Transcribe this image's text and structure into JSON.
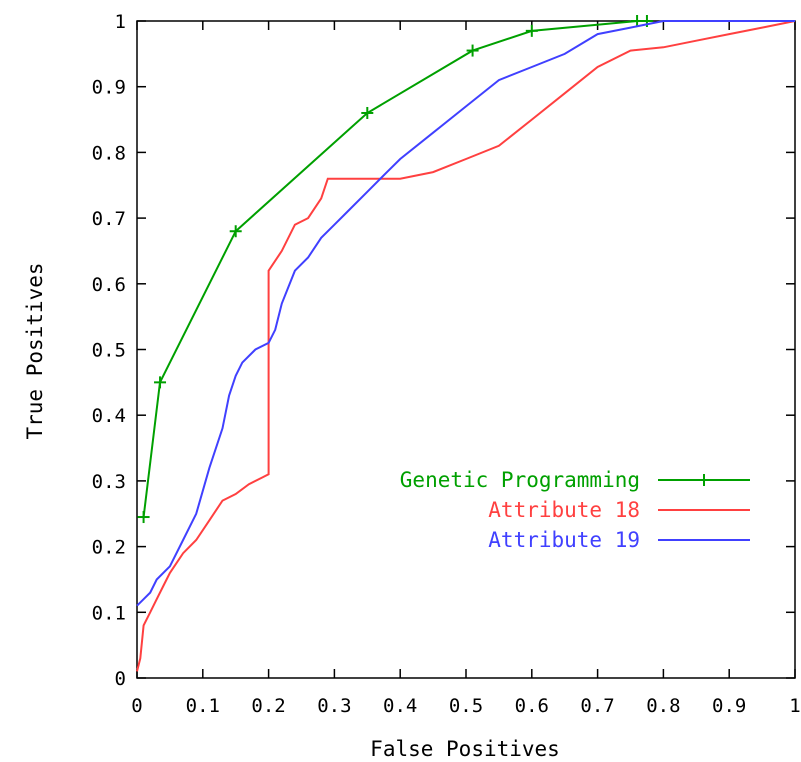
{
  "colors": {
    "background": "#ffffff",
    "axes": "#000000",
    "series_gp": "#00a000",
    "series_attr18": "#ff4040",
    "series_attr19": "#4040ff"
  },
  "chart_data": {
    "type": "line",
    "title": "",
    "xlabel": "False Positives",
    "ylabel": "True Positives",
    "xlim": [
      0,
      1
    ],
    "ylim": [
      0,
      1
    ],
    "grid": false,
    "legend_position": "right",
    "x_ticks": [
      "0",
      "0.1",
      "0.2",
      "0.3",
      "0.4",
      "0.5",
      "0.6",
      "0.7",
      "0.8",
      "0.9",
      "1"
    ],
    "y_ticks": [
      "0",
      "0.1",
      "0.2",
      "0.3",
      "0.4",
      "0.5",
      "0.6",
      "0.7",
      "0.8",
      "0.9",
      "1"
    ],
    "series": [
      {
        "name": "Genetic Programming",
        "color": "#00a000",
        "markers": true,
        "x": [
          0.01,
          0.035,
          0.15,
          0.35,
          0.51,
          0.6,
          0.76,
          0.775
        ],
        "y": [
          0.245,
          0.45,
          0.68,
          0.86,
          0.955,
          0.985,
          1.0,
          1.0
        ]
      },
      {
        "name": "Attribute 18",
        "color": "#ff4040",
        "markers": false,
        "x": [
          0.0,
          0.005,
          0.01,
          0.02,
          0.03,
          0.04,
          0.05,
          0.07,
          0.09,
          0.11,
          0.13,
          0.15,
          0.17,
          0.19,
          0.2,
          0.2,
          0.22,
          0.24,
          0.26,
          0.28,
          0.29,
          0.3,
          0.35,
          0.4,
          0.45,
          0.5,
          0.55,
          0.6,
          0.65,
          0.7,
          0.75,
          0.8,
          0.85,
          0.9,
          0.95,
          1.0
        ],
        "y": [
          0.01,
          0.03,
          0.08,
          0.1,
          0.12,
          0.14,
          0.16,
          0.19,
          0.21,
          0.24,
          0.27,
          0.28,
          0.295,
          0.305,
          0.31,
          0.62,
          0.65,
          0.69,
          0.7,
          0.73,
          0.76,
          0.76,
          0.76,
          0.76,
          0.77,
          0.79,
          0.81,
          0.85,
          0.89,
          0.93,
          0.955,
          0.96,
          0.97,
          0.98,
          0.99,
          1.0
        ]
      },
      {
        "name": "Attribute 19",
        "color": "#4040ff",
        "markers": false,
        "x": [
          0.0,
          0.01,
          0.02,
          0.03,
          0.05,
          0.07,
          0.09,
          0.11,
          0.13,
          0.14,
          0.15,
          0.16,
          0.18,
          0.2,
          0.21,
          0.22,
          0.24,
          0.26,
          0.28,
          0.3,
          0.32,
          0.35,
          0.38,
          0.4,
          0.45,
          0.5,
          0.55,
          0.6,
          0.65,
          0.7,
          0.75,
          0.8,
          0.85,
          0.9,
          0.95,
          1.0
        ],
        "y": [
          0.11,
          0.12,
          0.13,
          0.15,
          0.17,
          0.21,
          0.25,
          0.32,
          0.38,
          0.43,
          0.46,
          0.48,
          0.5,
          0.51,
          0.53,
          0.57,
          0.62,
          0.64,
          0.67,
          0.69,
          0.71,
          0.74,
          0.77,
          0.79,
          0.83,
          0.87,
          0.91,
          0.93,
          0.95,
          0.98,
          0.99,
          1.0,
          1.0,
          1.0,
          1.0,
          1.0
        ]
      }
    ]
  }
}
